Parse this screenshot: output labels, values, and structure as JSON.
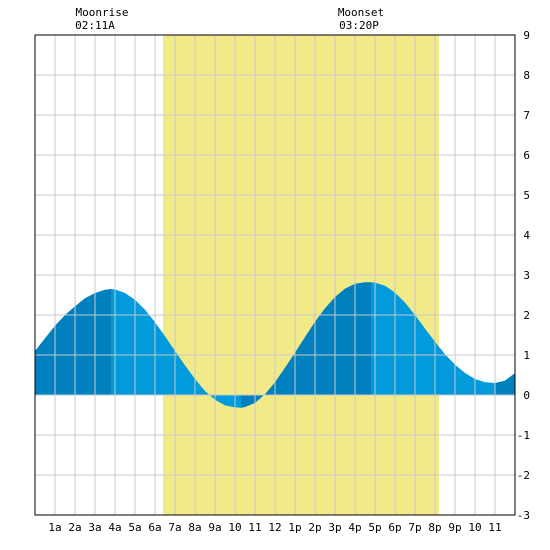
{
  "header": {
    "moonrise": {
      "label": "Moonrise",
      "time": "02:11A"
    },
    "moonset": {
      "label": "Moonset",
      "time": "03:20P"
    }
  },
  "colors": {
    "daylight": "#f2ea88",
    "tide_light": "#019bdd",
    "tide_dark": "#0080be",
    "grid": "#c8c8c8",
    "frame": "#000000"
  },
  "chart_data": {
    "type": "area",
    "title": "",
    "xlabel": "",
    "ylabel": "",
    "xlim": [
      0,
      24
    ],
    "ylim": [
      -3,
      9
    ],
    "y_ticks": [
      -3,
      -2,
      -1,
      0,
      1,
      2,
      3,
      4,
      5,
      6,
      7,
      8,
      9
    ],
    "x_ticks": [
      {
        "hour": 1,
        "label": "1a"
      },
      {
        "hour": 2,
        "label": "2a"
      },
      {
        "hour": 3,
        "label": "3a"
      },
      {
        "hour": 4,
        "label": "4a"
      },
      {
        "hour": 5,
        "label": "5a"
      },
      {
        "hour": 6,
        "label": "6a"
      },
      {
        "hour": 7,
        "label": "7a"
      },
      {
        "hour": 8,
        "label": "8a"
      },
      {
        "hour": 9,
        "label": "9a"
      },
      {
        "hour": 10,
        "label": "10"
      },
      {
        "hour": 11,
        "label": "11"
      },
      {
        "hour": 12,
        "label": "12"
      },
      {
        "hour": 13,
        "label": "1p"
      },
      {
        "hour": 14,
        "label": "2p"
      },
      {
        "hour": 15,
        "label": "3p"
      },
      {
        "hour": 16,
        "label": "4p"
      },
      {
        "hour": 17,
        "label": "5p"
      },
      {
        "hour": 18,
        "label": "6p"
      },
      {
        "hour": 19,
        "label": "7p"
      },
      {
        "hour": 20,
        "label": "8p"
      },
      {
        "hour": 21,
        "label": "9p"
      },
      {
        "hour": 22,
        "label": "10"
      },
      {
        "hour": 23,
        "label": "11"
      }
    ],
    "daylight": {
      "start": 6.4,
      "end": 20.2
    },
    "moonrise_hour": 2.18,
    "moonset_hour": 15.33,
    "tide_extremes": [
      {
        "hour": 3.8,
        "value": 2.65,
        "kind": "high"
      },
      {
        "hour": 10.3,
        "value": -0.32,
        "kind": "low"
      },
      {
        "hour": 16.8,
        "value": 2.82,
        "kind": "high"
      },
      {
        "hour": 23.0,
        "value": 0.3,
        "kind": "low"
      }
    ],
    "series": [
      {
        "values": [
          {
            "x": 0.0,
            "y": 1.1
          },
          {
            "x": 0.5,
            "y": 1.42
          },
          {
            "x": 1.0,
            "y": 1.73
          },
          {
            "x": 1.5,
            "y": 2.0
          },
          {
            "x": 2.0,
            "y": 2.22
          },
          {
            "x": 2.5,
            "y": 2.42
          },
          {
            "x": 3.0,
            "y": 2.55
          },
          {
            "x": 3.5,
            "y": 2.63
          },
          {
            "x": 3.8,
            "y": 2.65
          },
          {
            "x": 4.0,
            "y": 2.64
          },
          {
            "x": 4.5,
            "y": 2.55
          },
          {
            "x": 5.0,
            "y": 2.38
          },
          {
            "x": 5.5,
            "y": 2.13
          },
          {
            "x": 6.0,
            "y": 1.82
          },
          {
            "x": 6.5,
            "y": 1.47
          },
          {
            "x": 7.0,
            "y": 1.1
          },
          {
            "x": 7.5,
            "y": 0.74
          },
          {
            "x": 8.0,
            "y": 0.4
          },
          {
            "x": 8.5,
            "y": 0.1
          },
          {
            "x": 9.0,
            "y": -0.12
          },
          {
            "x": 9.5,
            "y": -0.26
          },
          {
            "x": 10.0,
            "y": -0.31
          },
          {
            "x": 10.3,
            "y": -0.32
          },
          {
            "x": 10.5,
            "y": -0.3
          },
          {
            "x": 11.0,
            "y": -0.2
          },
          {
            "x": 11.5,
            "y": 0.02
          },
          {
            "x": 12.0,
            "y": 0.32
          },
          {
            "x": 12.5,
            "y": 0.68
          },
          {
            "x": 13.0,
            "y": 1.06
          },
          {
            "x": 13.5,
            "y": 1.45
          },
          {
            "x": 14.0,
            "y": 1.83
          },
          {
            "x": 14.5,
            "y": 2.17
          },
          {
            "x": 15.0,
            "y": 2.45
          },
          {
            "x": 15.5,
            "y": 2.66
          },
          {
            "x": 16.0,
            "y": 2.78
          },
          {
            "x": 16.5,
            "y": 2.82
          },
          {
            "x": 16.8,
            "y": 2.82
          },
          {
            "x": 17.0,
            "y": 2.81
          },
          {
            "x": 17.5,
            "y": 2.73
          },
          {
            "x": 18.0,
            "y": 2.56
          },
          {
            "x": 18.5,
            "y": 2.31
          },
          {
            "x": 19.0,
            "y": 2.0
          },
          {
            "x": 19.5,
            "y": 1.66
          },
          {
            "x": 20.0,
            "y": 1.33
          },
          {
            "x": 20.5,
            "y": 1.02
          },
          {
            "x": 21.0,
            "y": 0.76
          },
          {
            "x": 21.5,
            "y": 0.55
          },
          {
            "x": 22.0,
            "y": 0.4
          },
          {
            "x": 22.5,
            "y": 0.32
          },
          {
            "x": 23.0,
            "y": 0.3
          },
          {
            "x": 23.5,
            "y": 0.36
          },
          {
            "x": 24.0,
            "y": 0.55
          }
        ]
      }
    ]
  }
}
